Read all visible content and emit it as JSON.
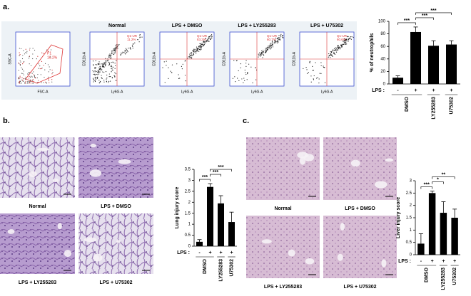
{
  "panel_labels": [
    "a.",
    "b.",
    "c."
  ],
  "flow": {
    "gate_plot": {
      "gate": "P1",
      "percent": "16.2%",
      "x_label": "FSC-A",
      "y_label": "SSC-A"
    },
    "x_label": "Ly6G-A",
    "y_label": "CD11b-A",
    "plots": [
      {
        "title": "Normal",
        "quadrant": "Q1-UR",
        "percent": "11.2%"
      },
      {
        "title": "LPS + DMSO",
        "quadrant": "Q1-UR",
        "percent": "83.2%"
      },
      {
        "title": "LPS + LY255283",
        "quadrant": "Q1-UR",
        "percent": "60.7%"
      },
      {
        "title": "LPS + U75302",
        "quadrant": "Q1-UR",
        "percent": "60.6%"
      }
    ]
  },
  "histology": {
    "lung": [
      "Normal",
      "LPS + DMSO",
      "LPS + LY255283",
      "LPS + U75302"
    ],
    "liver": [
      "Normal",
      "LPS + DMSO",
      "LPS + LY255283",
      "LPS + U75302"
    ]
  },
  "chart_data": [
    {
      "type": "bar",
      "y_label": "% of neutrophils",
      "lps_label": "LPS :",
      "categories": [
        "-",
        "+",
        "+",
        "+"
      ],
      "treatments": [
        "DMSO",
        "LY255283",
        "U75302"
      ],
      "values": [
        10,
        83,
        61,
        63
      ],
      "errors": [
        3,
        8,
        8,
        6
      ],
      "significance": [
        "***",
        "***",
        "***"
      ],
      "ylim": [
        0,
        100
      ],
      "yticks": [
        0,
        20,
        40,
        60,
        80,
        100
      ],
      "color": "#000000"
    },
    {
      "type": "bar",
      "y_label": "Lung injury score",
      "lps_label": "LPS :",
      "categories": [
        "-",
        "+",
        "+",
        "+"
      ],
      "treatments": [
        "DMSO",
        "LY255283",
        "U75302"
      ],
      "values": [
        0.2,
        2.7,
        1.95,
        1.1
      ],
      "errors": [
        0.1,
        0.15,
        0.35,
        0.45
      ],
      "significance": [
        "***",
        "***",
        "***"
      ],
      "ylim": [
        0,
        3.5
      ],
      "yticks": [
        0,
        0.5,
        1,
        1.5,
        2,
        2.5,
        3,
        3.5
      ],
      "color": "#000000"
    },
    {
      "type": "bar",
      "y_label": "Liver injury score",
      "lps_label": "LPS :",
      "categories": [
        "-",
        "+",
        "+",
        "+"
      ],
      "treatments": [
        "DMSO",
        "LY255283",
        "U75302"
      ],
      "values": [
        0.45,
        2.5,
        1.7,
        1.5
      ],
      "errors": [
        0.4,
        0.08,
        0.45,
        0.35
      ],
      "significance": [
        "***",
        "*",
        "**"
      ],
      "ylim": [
        0,
        3
      ],
      "yticks": [
        0,
        0.5,
        1,
        1.5,
        2,
        2.5,
        3
      ],
      "color": "#000000"
    }
  ]
}
